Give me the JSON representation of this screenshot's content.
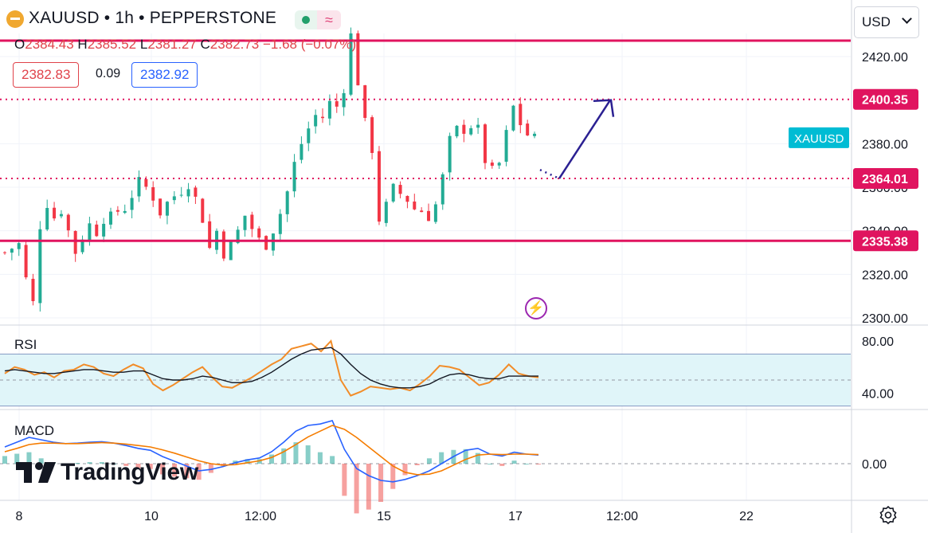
{
  "header": {
    "title": "XAUUSD • 1h • PEPPERSTONE",
    "open": "2384.43",
    "high": "2385.52",
    "low": "2381.27",
    "close": "2382.73",
    "change": "−1.68 (−0.07%)",
    "bid": "2382.83",
    "spread": "0.09",
    "ask": "2382.92",
    "currency": "USD"
  },
  "panes": {
    "rsi_label": "RSI",
    "macd_label": "MACD"
  },
  "logo_text": "TradingView",
  "colors": {
    "up": "#22ab94",
    "down": "#f23645",
    "level": "#e0145f",
    "rsi": "#f28c28",
    "rsi_ma": "#131722",
    "macd": "#2962ff",
    "signal": "#f57c00",
    "arrow": "#2b2092",
    "symbol_tag": "#00bcd4",
    "rsi_band": "#e0f5f9"
  },
  "chart_data": [
    {
      "type": "candlestick",
      "title": "XAUUSD • 1h • PEPPERSTONE",
      "x_ticks": [
        "8",
        "10",
        "12:00",
        "15",
        "17",
        "12:00",
        "22"
      ],
      "y_ticks": [
        "2300.00",
        "2320.00",
        "2340.00",
        "2360.00",
        "2380.00",
        "2420.00"
      ],
      "ylim": [
        2297,
        2428
      ],
      "levels": [
        {
          "value": 2427.3,
          "style": "solid"
        },
        {
          "value": 2400.35,
          "label": "2400.35",
          "style": "dotted"
        },
        {
          "value": 2364.01,
          "label": "2364.01",
          "style": "dotted"
        },
        {
          "value": 2335.38,
          "label": "2335.38",
          "style": "solid"
        }
      ],
      "symbol_tag": {
        "label": "XAUUSD",
        "value": 2382.73
      },
      "projection": {
        "from": 2368,
        "via": 2364,
        "to": 2400.35
      },
      "close_path": [
        [
          0,
          2330
        ],
        [
          0.5,
          2332
        ],
        [
          1,
          2334
        ],
        [
          1.5,
          2318
        ],
        [
          2,
          2307
        ],
        [
          2.5,
          2342
        ],
        [
          3,
          2352
        ],
        [
          3.5,
          2346
        ],
        [
          4,
          2349
        ],
        [
          4.5,
          2340
        ],
        [
          5,
          2330
        ],
        [
          5.5,
          2337
        ],
        [
          6,
          2343
        ],
        [
          6.5,
          2339
        ],
        [
          7,
          2345
        ],
        [
          7.5,
          2347
        ],
        [
          8,
          2349
        ],
        [
          8.5,
          2350
        ],
        [
          9,
          2356
        ],
        [
          9.5,
          2363
        ],
        [
          10,
          2360
        ],
        [
          10.5,
          2355
        ],
        [
          11,
          2348
        ],
        [
          11.5,
          2353
        ],
        [
          12,
          2356
        ],
        [
          12.5,
          2358
        ],
        [
          13,
          2361
        ],
        [
          13.5,
          2355
        ],
        [
          14,
          2345
        ],
        [
          14.5,
          2332
        ],
        [
          15,
          2340
        ],
        [
          15.5,
          2329
        ],
        [
          16,
          2334
        ],
        [
          16.5,
          2340
        ],
        [
          17,
          2347
        ],
        [
          17.5,
          2341
        ],
        [
          18,
          2336
        ],
        [
          18.5,
          2333
        ],
        [
          19,
          2340
        ],
        [
          19.5,
          2348
        ],
        [
          20,
          2358
        ],
        [
          20.5,
          2371
        ],
        [
          21,
          2380
        ],
        [
          21.5,
          2387
        ],
        [
          22,
          2393
        ],
        [
          22.5,
          2392
        ],
        [
          23,
          2399
        ],
        [
          23.5,
          2397
        ],
        [
          24,
          2405
        ],
        [
          24.5,
          2430
        ],
        [
          25,
          2408
        ],
        [
          25.5,
          2390
        ],
        [
          26,
          2377
        ],
        [
          26.5,
          2345
        ],
        [
          27,
          2352
        ],
        [
          27.5,
          2360
        ],
        [
          28,
          2357
        ],
        [
          28.5,
          2354
        ],
        [
          29,
          2350
        ],
        [
          29.5,
          2349
        ],
        [
          30,
          2346
        ],
        [
          30.5,
          2352
        ],
        [
          31,
          2365
        ],
        [
          31.5,
          2382
        ],
        [
          32,
          2387
        ],
        [
          32.5,
          2386
        ],
        [
          33,
          2388
        ],
        [
          33.5,
          2387
        ],
        [
          34,
          2372
        ],
        [
          34.5,
          2368
        ],
        [
          35,
          2371
        ],
        [
          35.5,
          2385
        ],
        [
          36,
          2397
        ],
        [
          36.5,
          2389
        ],
        [
          37,
          2384
        ],
        [
          37.5,
          2383
        ]
      ]
    },
    {
      "type": "line",
      "title": "RSI",
      "y_ticks": [
        "80.00",
        "40.00"
      ],
      "band": [
        30,
        70
      ],
      "ylim": [
        20,
        90
      ],
      "series": [
        {
          "values": [
            55,
            60,
            58,
            54,
            56,
            52,
            57,
            58,
            62,
            60,
            55,
            53,
            58,
            62,
            59,
            47,
            42,
            46,
            51,
            56,
            60,
            52,
            45,
            44,
            48,
            52,
            57,
            62,
            66,
            74,
            76,
            78,
            72,
            80,
            50,
            38,
            41,
            45,
            44,
            43,
            44,
            42,
            47,
            53,
            61,
            60,
            58,
            52,
            46,
            48,
            54,
            62,
            55,
            53,
            52
          ]
        },
        {
          "values": [
            57,
            58,
            57,
            56,
            55,
            55,
            56,
            57,
            58,
            58,
            57,
            56,
            56,
            57,
            57,
            54,
            51,
            50,
            50,
            51,
            53,
            52,
            50,
            48,
            48,
            49,
            52,
            56,
            61,
            66,
            70,
            73,
            74,
            75,
            70,
            62,
            55,
            50,
            47,
            45,
            44,
            44,
            45,
            47,
            51,
            54,
            55,
            54,
            52,
            51,
            51,
            53,
            53,
            53,
            53
          ]
        }
      ]
    },
    {
      "type": "bar",
      "title": "MACD",
      "y_ticks": [
        "0.00"
      ],
      "ylim": [
        -5,
        10
      ],
      "series": [
        {
          "values": [
            3.5,
            4.5,
            5.5,
            5,
            4.5,
            4.2,
            4.3,
            4.5,
            4.6,
            4.3,
            3.8,
            3.2,
            2.8,
            1.5,
            0.5,
            -0.5,
            -1.5,
            -1.2,
            -0.6,
            0.2,
            0.8,
            1.2,
            2.5,
            4.5,
            6.8,
            8.0,
            8.3,
            9.0,
            3.0,
            -1,
            -2.5,
            -3.5,
            -3.8,
            -3.3,
            -2.5,
            -1.5,
            0,
            1.5,
            2.8,
            3.2,
            2.0,
            1.6,
            2.4,
            2.0,
            1.8
          ]
        },
        {
          "values": [
            2.5,
            3.2,
            4.0,
            4.3,
            4.3,
            4.2,
            4.2,
            4.3,
            4.4,
            4.3,
            4.1,
            3.8,
            3.5,
            2.9,
            2.2,
            1.4,
            0.6,
            0.0,
            -0.3,
            -0.2,
            0.2,
            0.6,
            1.3,
            2.5,
            4.0,
            5.6,
            6.8,
            8.0,
            7.2,
            5.5,
            3.5,
            1.5,
            -0.5,
            -1.8,
            -2.3,
            -2.2,
            -1.5,
            -0.3,
            0.9,
            1.8,
            2.0,
            1.9,
            2.0,
            2.0,
            1.9
          ]
        }
      ]
    }
  ]
}
